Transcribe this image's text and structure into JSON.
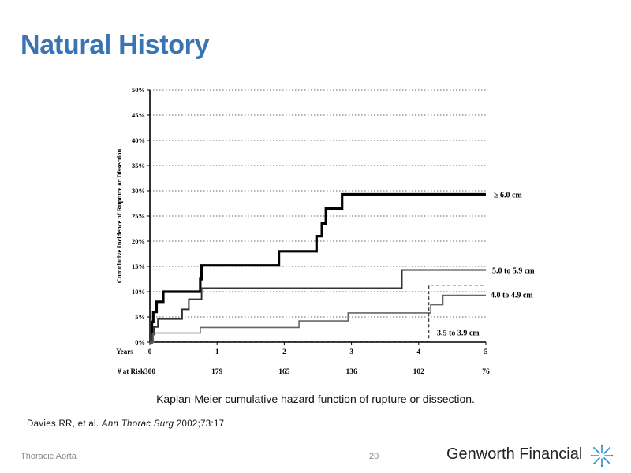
{
  "slide": {
    "title": "Natural History",
    "caption": "Kaplan-Meier cumulative hazard function of rupture or dissection.",
    "citation_authors": "Davies RR, et al. ",
    "citation_journal": "Ann Thorac Surg",
    "citation_ref": " 2002;73:17",
    "footer_left": "Thoracic Aorta",
    "page_number": "20",
    "brand": "Genworth Financial"
  },
  "colors": {
    "title": "#3a74b3",
    "rule": "#2f68a8",
    "series_dark": "#000000",
    "series_gray": "#555555"
  },
  "chart_data": {
    "type": "line",
    "step": true,
    "title": "",
    "xlabel": "Years",
    "ylabel": "Cumulative Incidence of Rupture or Dissection",
    "xlim": [
      0,
      5
    ],
    "ylim": [
      0,
      50
    ],
    "x_ticks": [
      "0",
      "1",
      "2",
      "3",
      "4",
      "5"
    ],
    "y_ticks": [
      "0%",
      "5%",
      "10%",
      "15%",
      "20%",
      "25%",
      "30%",
      "35%",
      "40%",
      "45%",
      "50%"
    ],
    "grid": true,
    "at_risk_label": "# at Risk",
    "at_risk": [
      {
        "x": 0,
        "n": "300"
      },
      {
        "x": 1,
        "n": "179"
      },
      {
        "x": 2,
        "n": "165"
      },
      {
        "x": 3,
        "n": "136"
      },
      {
        "x": 4,
        "n": "102"
      },
      {
        "x": 5,
        "n": "76"
      }
    ],
    "series": [
      {
        "name": "≥ 6.0 cm",
        "style": "thick",
        "points": [
          [
            0,
            0
          ],
          [
            0.03,
            0
          ],
          [
            0.03,
            4
          ],
          [
            0.05,
            4
          ],
          [
            0.05,
            6
          ],
          [
            0.1,
            6
          ],
          [
            0.1,
            8
          ],
          [
            0.2,
            8
          ],
          [
            0.2,
            10
          ],
          [
            0.75,
            10
          ],
          [
            0.75,
            12.5
          ],
          [
            0.77,
            12.5
          ],
          [
            0.77,
            15.2
          ],
          [
            1.92,
            15.2
          ],
          [
            1.92,
            18
          ],
          [
            2.48,
            18
          ],
          [
            2.48,
            21
          ],
          [
            2.56,
            21
          ],
          [
            2.56,
            23.5
          ],
          [
            2.62,
            23.5
          ],
          [
            2.62,
            26.5
          ],
          [
            2.86,
            26.5
          ],
          [
            2.86,
            29.3
          ],
          [
            5,
            29.3
          ]
        ]
      },
      {
        "name": "5.0 to 5.9 cm",
        "style": "medium",
        "points": [
          [
            0,
            0
          ],
          [
            0.03,
            0
          ],
          [
            0.03,
            1.5
          ],
          [
            0.06,
            1.5
          ],
          [
            0.06,
            3
          ],
          [
            0.12,
            3
          ],
          [
            0.12,
            4.6
          ],
          [
            0.48,
            4.6
          ],
          [
            0.48,
            6.5
          ],
          [
            0.58,
            6.5
          ],
          [
            0.58,
            8.5
          ],
          [
            0.77,
            8.5
          ],
          [
            0.77,
            10.7
          ],
          [
            3.75,
            10.7
          ],
          [
            3.75,
            14.3
          ],
          [
            5,
            14.3
          ]
        ]
      },
      {
        "name": "4.0 to 4.9 cm",
        "style": "gray",
        "points": [
          [
            0,
            0
          ],
          [
            0.05,
            0
          ],
          [
            0.05,
            1.8
          ],
          [
            0.75,
            1.8
          ],
          [
            0.75,
            2.9
          ],
          [
            2.22,
            2.9
          ],
          [
            2.22,
            4.2
          ],
          [
            2.95,
            4.2
          ],
          [
            2.95,
            5.8
          ],
          [
            4.18,
            5.8
          ],
          [
            4.18,
            7.4
          ],
          [
            4.36,
            7.4
          ],
          [
            4.36,
            9.3
          ],
          [
            5,
            9.3
          ]
        ]
      },
      {
        "name": "3.5 to 3.9 cm",
        "style": "dashed",
        "points": [
          [
            0,
            0.2
          ],
          [
            4.15,
            0.2
          ],
          [
            4.15,
            11.3
          ],
          [
            5,
            11.3
          ]
        ]
      }
    ]
  }
}
